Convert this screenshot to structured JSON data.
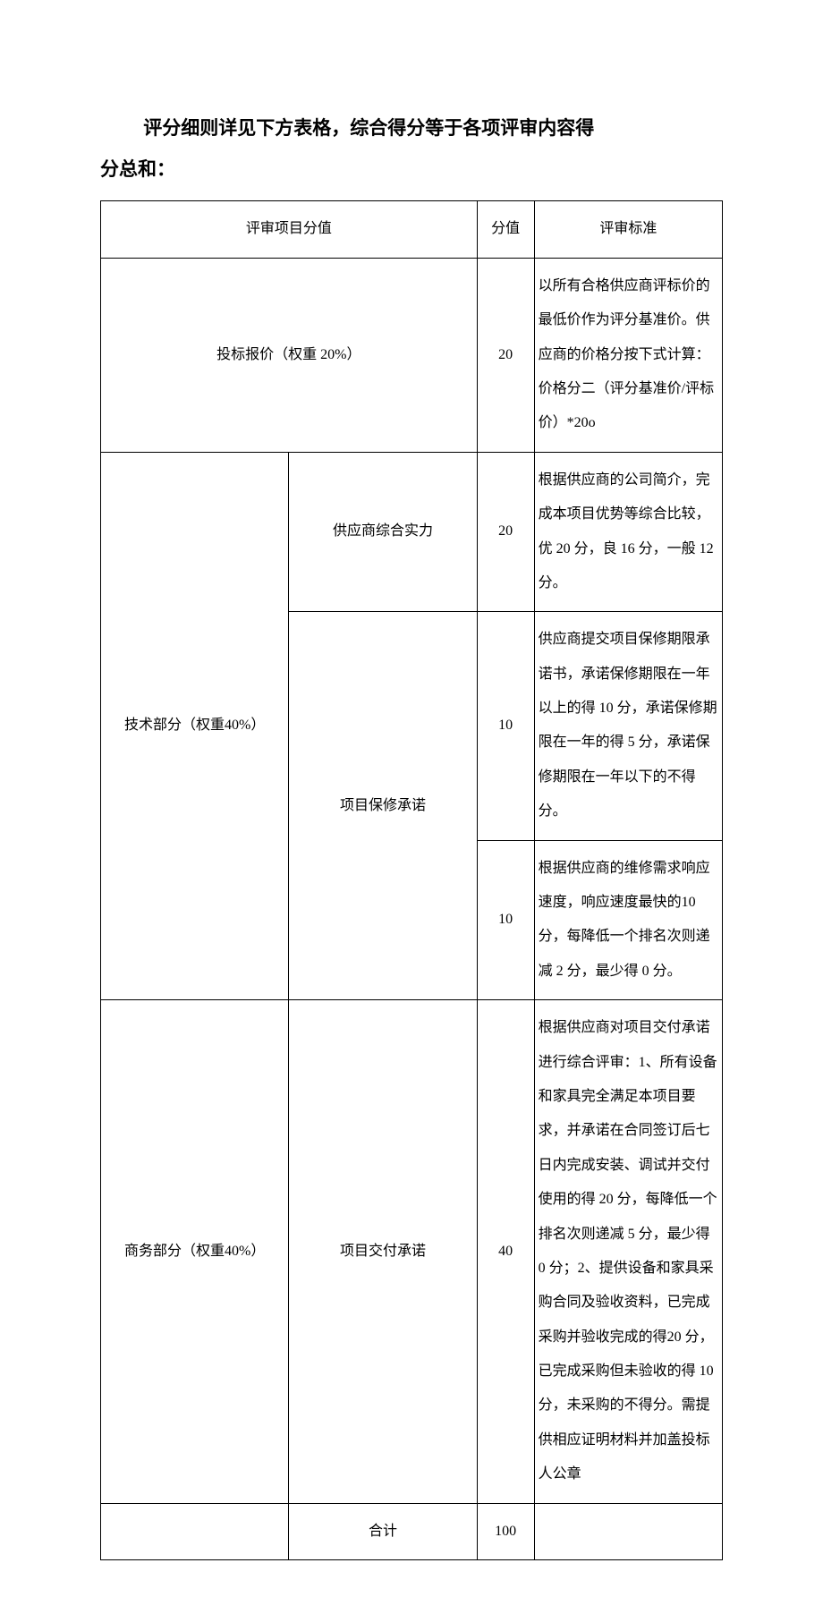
{
  "title": {
    "line1": "评分细则详见下方表格，综合得分等于各项评审内容得",
    "line2": "分总和："
  },
  "table": {
    "headers": {
      "item_score": "评审项目分值",
      "score": "分值",
      "criteria": "评审标准"
    },
    "rows": [
      {
        "category": "投标报价（权重 20%）",
        "score": "20",
        "criteria": "以所有合格供应商评标价的最低价作为评分基准价。供应商的价格分按下式计算：价格分二（评分基准价/评标价）*20o"
      },
      {
        "category": "技术部分（权重40%）",
        "subitem": "供应商综合实力",
        "score": "20",
        "criteria": "根据供应商的公司简介，完成本项目优势等综合比较，优 20 分，良 16 分，一般 12 分。"
      },
      {
        "subitem": "项目保修承诺",
        "score": "10",
        "criteria": "供应商提交项目保修期限承诺书，承诺保修期限在一年以上的得 10 分，承诺保修期限在一年的得 5 分，承诺保修期限在一年以下的不得分。"
      },
      {
        "score": "10",
        "criteria": "根据供应商的维修需求响应速度，响应速度最快的10 分，每降低一个排名次则递减 2 分，最少得 0 分。"
      },
      {
        "category": "商务部分（权重40%）",
        "subitem": "项目交付承诺",
        "score": "40",
        "criteria": "根据供应商对项目交付承诺进行综合评审：1、所有设备和家具完全满足本项目要求，并承诺在合同签订后七日内完成安装、调试并交付使用的得 20 分，每降低一个排名次则递减 5 分，最少得 0 分；2、提供设备和家具采购合同及验收资料，已完成采购并验收完成的得20 分，已完成采购但未验收的得 10 分，未采购的不得分。需提供相应证明材料并加盖投标人公章"
      },
      {
        "category": "",
        "subitem": "合计",
        "score": "100",
        "criteria": ""
      }
    ]
  }
}
